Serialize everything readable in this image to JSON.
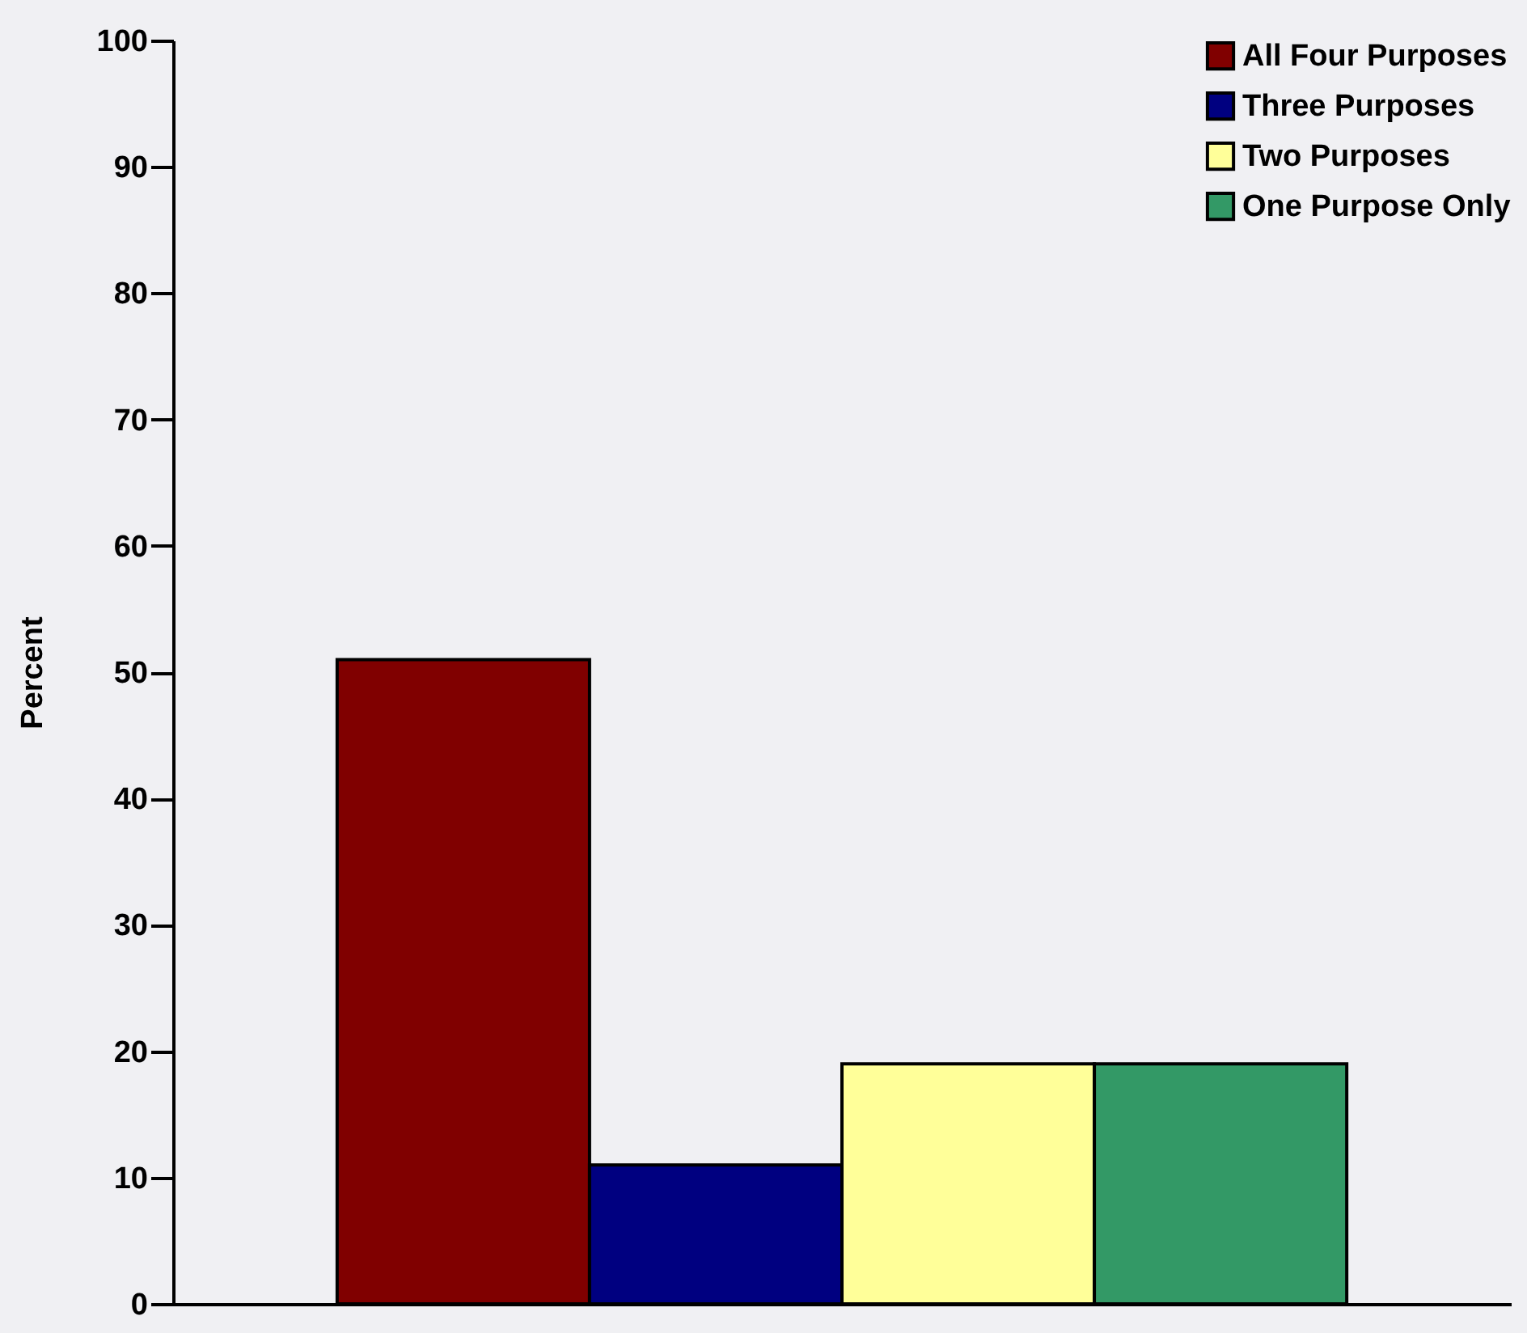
{
  "chart_data": {
    "type": "bar",
    "categories": [
      null,
      null,
      null,
      null
    ],
    "ylabel": "Percent",
    "ylim": [
      0,
      100
    ],
    "yticks": [
      0,
      10,
      20,
      30,
      40,
      50,
      60,
      70,
      80,
      90,
      100
    ],
    "grid": false,
    "legend": "top right",
    "tick_labels": "y",
    "series": [
      {
        "name": "All Four Purposes",
        "color": "#800000",
        "values": [
          51,
          null,
          null,
          null
        ]
      },
      {
        "name": "Three Purposes",
        "color": "#000080",
        "values": [
          null,
          11,
          null,
          null
        ]
      },
      {
        "name": "Two Purposes",
        "color": "#ffff99",
        "values": [
          null,
          null,
          19,
          null
        ]
      },
      {
        "name": "One Purpose Only",
        "color": "#339966",
        "values": [
          null,
          null,
          null,
          19
        ]
      }
    ]
  }
}
